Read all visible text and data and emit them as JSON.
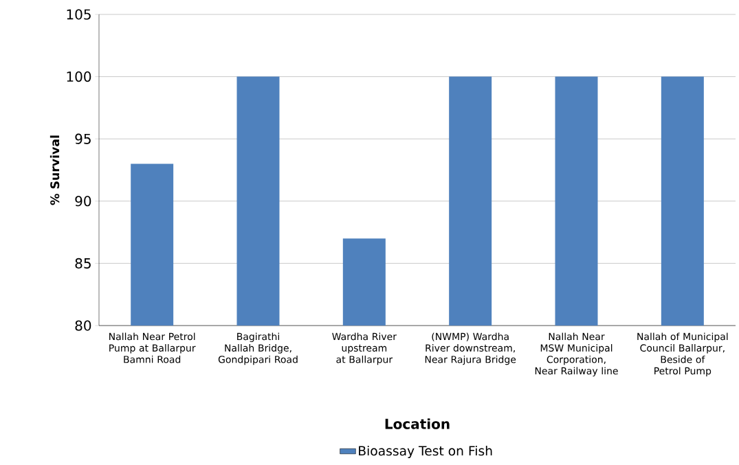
{
  "chart_data": {
    "type": "bar",
    "xlabel": "Location",
    "ylabel": "% Survival",
    "categories": [
      "Nallah Near Petrol Pump at Ballarpur Bamni Road",
      "Bagirathi Nallah Bridge, Gondpipari Road",
      "Wardha River upstream at Ballarpur",
      "(NWMP) Wardha River downstream, Near Rajura Bridge",
      "Nallah Near MSW Municipal Corporation, Near Railway line",
      "Nallah of Municipal Council Ballarpur, Beside of Petrol Pump"
    ],
    "series": [
      {
        "name": "Bioassay Test on Fish",
        "color": "#4f81bd",
        "values": [
          93,
          100,
          87,
          100,
          100,
          100
        ]
      }
    ],
    "ylim": [
      80,
      105
    ],
    "yticks": [
      80,
      85,
      90,
      95,
      100,
      105
    ],
    "grid": "y",
    "legend": "bottom"
  }
}
